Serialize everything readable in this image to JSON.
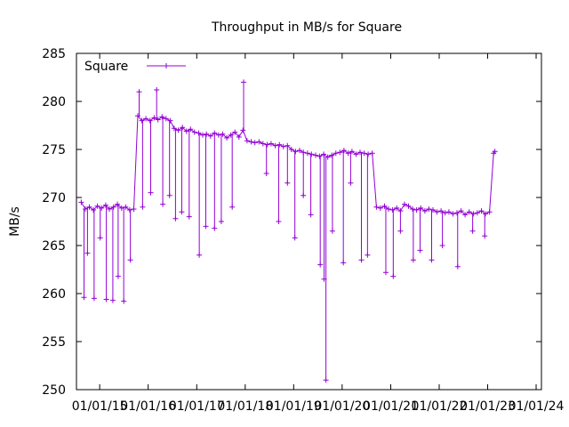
{
  "chart_data": {
    "type": "line",
    "title": "Throughput in MB/s for Square",
    "xlabel": "",
    "ylabel": "MB/s",
    "x_tick_labels": [
      "01/01/15",
      "01/01/16",
      "01/01/17",
      "01/01/18",
      "01/01/19",
      "01/01/20",
      "01/01/21",
      "01/01/22",
      "01/01/23",
      "01/01/24"
    ],
    "xlim": [
      "2014-07-10",
      "2024-02-10"
    ],
    "ylim": [
      250,
      285
    ],
    "y_ticks": [
      250,
      255,
      260,
      265,
      270,
      275,
      280,
      285
    ],
    "grid": false,
    "legend_position": "top-left",
    "series": [
      {
        "name": "Square",
        "color": "#9400d3",
        "marker": "+",
        "points": [
          [
            "2014-08-15",
            269.5
          ],
          [
            "2014-09-15",
            268.8
          ],
          [
            "2014-10-15",
            269.0
          ],
          [
            "2014-11-15",
            268.7
          ],
          [
            "2014-12-15",
            269.1
          ],
          [
            "2015-01-15",
            268.9
          ],
          [
            "2015-02-15",
            269.2
          ],
          [
            "2015-03-15",
            268.8
          ],
          [
            "2015-04-15",
            269.0
          ],
          [
            "2015-05-15",
            269.3
          ],
          [
            "2015-06-15",
            268.9
          ],
          [
            "2015-07-15",
            269.0
          ],
          [
            "2015-08-15",
            268.7
          ],
          [
            "2015-09-15",
            268.8
          ],
          [
            "2015-10-15",
            278.5
          ],
          [
            "2015-11-15",
            278.0
          ],
          [
            "2015-12-15",
            278.2
          ],
          [
            "2016-01-15",
            278.0
          ],
          [
            "2016-02-15",
            278.3
          ],
          [
            "2016-03-15",
            278.1
          ],
          [
            "2016-04-15",
            278.4
          ],
          [
            "2016-05-15",
            278.2
          ],
          [
            "2016-06-15",
            278.0
          ],
          [
            "2016-07-15",
            277.2
          ],
          [
            "2016-08-15",
            277.0
          ],
          [
            "2016-09-15",
            277.3
          ],
          [
            "2016-10-15",
            276.9
          ],
          [
            "2016-11-15",
            277.1
          ],
          [
            "2016-12-15",
            276.8
          ],
          [
            "2017-01-15",
            276.7
          ],
          [
            "2017-02-15",
            276.5
          ],
          [
            "2017-03-15",
            276.6
          ],
          [
            "2017-04-15",
            276.4
          ],
          [
            "2017-05-15",
            276.7
          ],
          [
            "2017-06-15",
            276.5
          ],
          [
            "2017-07-15",
            276.6
          ],
          [
            "2017-08-15",
            276.2
          ],
          [
            "2017-09-15",
            276.5
          ],
          [
            "2017-10-15",
            276.8
          ],
          [
            "2017-11-15",
            276.3
          ],
          [
            "2017-12-15",
            277.0
          ],
          [
            "2018-01-15",
            275.9
          ],
          [
            "2018-02-15",
            275.8
          ],
          [
            "2018-03-15",
            275.7
          ],
          [
            "2018-04-15",
            275.8
          ],
          [
            "2018-05-15",
            275.6
          ],
          [
            "2018-06-15",
            275.5
          ],
          [
            "2018-07-15",
            275.6
          ],
          [
            "2018-08-15",
            275.4
          ],
          [
            "2018-09-15",
            275.5
          ],
          [
            "2018-10-15",
            275.3
          ],
          [
            "2018-11-15",
            275.4
          ],
          [
            "2018-12-15",
            275.0
          ],
          [
            "2019-01-15",
            274.8
          ],
          [
            "2019-02-15",
            274.9
          ],
          [
            "2019-03-15",
            274.7
          ],
          [
            "2019-04-15",
            274.6
          ],
          [
            "2019-05-15",
            274.5
          ],
          [
            "2019-06-15",
            274.4
          ],
          [
            "2019-07-15",
            274.3
          ],
          [
            "2019-08-15",
            274.5
          ],
          [
            "2019-09-15",
            274.2
          ],
          [
            "2019-10-15",
            274.4
          ],
          [
            "2019-11-15",
            274.6
          ],
          [
            "2019-12-15",
            274.7
          ],
          [
            "2020-01-15",
            274.9
          ],
          [
            "2020-02-15",
            274.6
          ],
          [
            "2020-03-15",
            274.8
          ],
          [
            "2020-04-15",
            274.5
          ],
          [
            "2020-05-15",
            274.7
          ],
          [
            "2020-06-15",
            274.6
          ],
          [
            "2020-07-15",
            274.5
          ],
          [
            "2020-08-15",
            274.6
          ],
          [
            "2020-09-15",
            269.0
          ],
          [
            "2020-10-15",
            268.9
          ],
          [
            "2020-11-15",
            269.1
          ],
          [
            "2020-12-15",
            268.8
          ],
          [
            "2021-01-15",
            268.7
          ],
          [
            "2021-02-15",
            268.9
          ],
          [
            "2021-03-15",
            268.6
          ],
          [
            "2021-04-15",
            269.3
          ],
          [
            "2021-05-15",
            269.1
          ],
          [
            "2021-06-15",
            268.8
          ],
          [
            "2021-07-15",
            268.7
          ],
          [
            "2021-08-15",
            268.9
          ],
          [
            "2021-09-15",
            268.6
          ],
          [
            "2021-10-15",
            268.8
          ],
          [
            "2021-11-15",
            268.7
          ],
          [
            "2021-12-15",
            268.5
          ],
          [
            "2022-01-15",
            268.6
          ],
          [
            "2022-02-15",
            268.4
          ],
          [
            "2022-03-15",
            268.5
          ],
          [
            "2022-04-15",
            268.3
          ],
          [
            "2022-05-15",
            268.4
          ],
          [
            "2022-06-15",
            268.6
          ],
          [
            "2022-07-15",
            268.2
          ],
          [
            "2022-08-15",
            268.5
          ],
          [
            "2022-09-15",
            268.3
          ],
          [
            "2022-10-15",
            268.4
          ],
          [
            "2022-11-15",
            268.6
          ],
          [
            "2022-12-15",
            268.3
          ],
          [
            "2023-01-15",
            268.5
          ],
          [
            "2023-02-15",
            274.6
          ],
          [
            "2023-02-25",
            274.8
          ]
        ],
        "spikes": [
          [
            "2014-09-05",
            259.6
          ],
          [
            "2014-10-01",
            264.2
          ],
          [
            "2014-11-20",
            259.5
          ],
          [
            "2015-01-05",
            265.8
          ],
          [
            "2015-02-20",
            259.4
          ],
          [
            "2015-04-10",
            259.3
          ],
          [
            "2015-05-20",
            261.8
          ],
          [
            "2015-07-01",
            259.2
          ],
          [
            "2015-08-20",
            263.5
          ],
          [
            "2015-10-25",
            281.0
          ],
          [
            "2015-11-20",
            269.0
          ],
          [
            "2016-01-20",
            270.5
          ],
          [
            "2016-03-05",
            281.2
          ],
          [
            "2016-04-20",
            269.3
          ],
          [
            "2016-06-10",
            270.2
          ],
          [
            "2016-07-25",
            267.8
          ],
          [
            "2016-09-10",
            268.5
          ],
          [
            "2016-11-05",
            268.0
          ],
          [
            "2017-01-20",
            264.0
          ],
          [
            "2017-03-10",
            267.0
          ],
          [
            "2017-05-15",
            266.8
          ],
          [
            "2017-07-05",
            267.5
          ],
          [
            "2017-09-25",
            269.0
          ],
          [
            "2017-12-20",
            282.0
          ],
          [
            "2018-06-10",
            272.5
          ],
          [
            "2018-09-10",
            267.5
          ],
          [
            "2018-11-15",
            271.5
          ],
          [
            "2019-01-10",
            265.8
          ],
          [
            "2019-03-15",
            270.2
          ],
          [
            "2019-05-10",
            268.2
          ],
          [
            "2019-07-20",
            263.0
          ],
          [
            "2019-08-18",
            261.5
          ],
          [
            "2019-09-01",
            251.0
          ],
          [
            "2019-10-20",
            266.5
          ],
          [
            "2020-01-10",
            263.2
          ],
          [
            "2020-03-05",
            271.5
          ],
          [
            "2020-05-25",
            263.5
          ],
          [
            "2020-07-10",
            264.0
          ],
          [
            "2020-11-25",
            262.2
          ],
          [
            "2021-01-20",
            261.8
          ],
          [
            "2021-03-15",
            266.5
          ],
          [
            "2021-06-20",
            263.5
          ],
          [
            "2021-08-10",
            264.5
          ],
          [
            "2021-11-05",
            263.5
          ],
          [
            "2022-01-25",
            265.0
          ],
          [
            "2022-05-20",
            262.8
          ],
          [
            "2022-09-10",
            266.5
          ],
          [
            "2022-12-10",
            266.0
          ]
        ]
      }
    ]
  }
}
